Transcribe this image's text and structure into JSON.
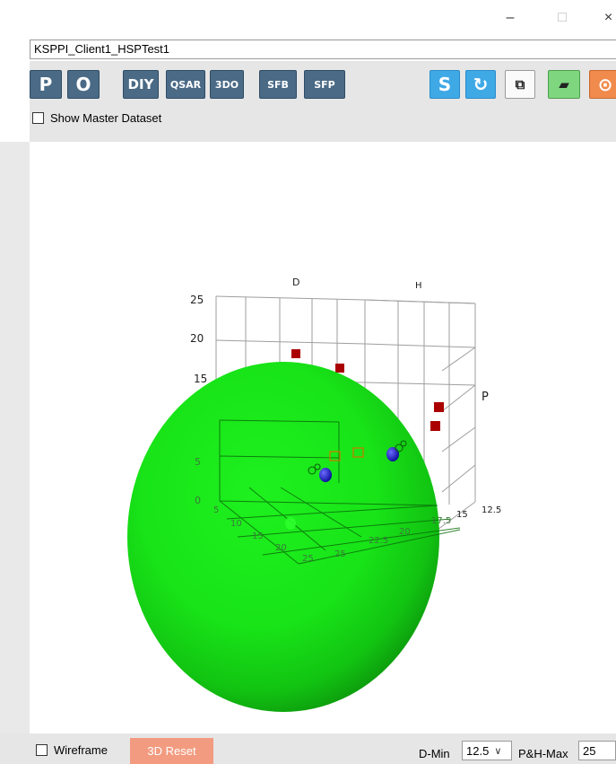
{
  "window": {
    "minimize_glyph": "–",
    "maximize_glyph": "□",
    "close_glyph": "×"
  },
  "dataset_name": "KSPPI_Client1_HSPTest1",
  "toolbar": {
    "left_buttons": [
      "P",
      "O",
      "DIY",
      "QSAR",
      "3DO",
      "SFB",
      "SFP"
    ],
    "right_buttons": [
      "S",
      "↻",
      "⧉",
      "▰",
      "⊙"
    ]
  },
  "show_master_label": "Show Master Dataset",
  "plot": {
    "axis_label_d": "D",
    "axis_label_h": "H",
    "axis_label_p": "P",
    "z_ticks": [
      "25",
      "20",
      "15",
      "5",
      "0"
    ],
    "x_ticks": [
      "5",
      "10",
      "15",
      "20",
      "25"
    ],
    "y_ticks": [
      "25",
      "22.5",
      "20",
      "17.5",
      "15",
      "12.5"
    ],
    "sphere_color": "#19e619",
    "inside_marker_color": "#1a1acc",
    "outside_marker_color": "#aa0000"
  },
  "bottom": {
    "wireframe_label": "Wireframe",
    "reset_label": "3D Reset",
    "dmin_label": "D-Min",
    "dmin_value": "12.5",
    "phmax_label": "P&H-Max",
    "phmax_value": "25"
  }
}
